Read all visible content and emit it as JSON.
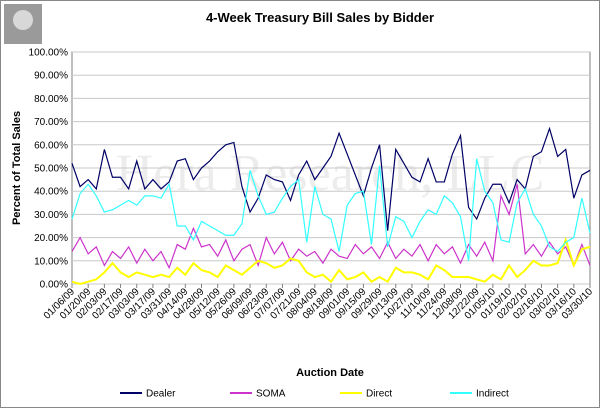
{
  "chart_data": {
    "type": "line",
    "title": "4-Week Treasury Bill Sales by Bidder",
    "watermark": "Hera Research, LLC",
    "x_label": "Auction Date",
    "y_label": "Percent of Total Sales",
    "categories": [
      "01/06/09",
      null,
      "01/20/09",
      null,
      "02/03/09",
      null,
      "02/17/09",
      null,
      "03/03/09",
      null,
      "03/17/09",
      null,
      "03/31/09",
      null,
      "04/14/09",
      null,
      "04/28/09",
      null,
      "05/12/09",
      null,
      "05/26/09",
      null,
      "06/09/09",
      null,
      "06/23/09",
      null,
      "07/07/09",
      null,
      "07/21/09",
      null,
      "08/04/09",
      null,
      "08/18/09",
      null,
      "09/01/09",
      null,
      "09/15/09",
      null,
      "09/29/09",
      null,
      "10/13/09",
      null,
      "10/27/09",
      null,
      "11/10/09",
      null,
      "11/24/09",
      null,
      "12/08/09",
      null,
      "12/22/09",
      null,
      "01/05/10",
      null,
      "01/19/10",
      null,
      "02/02/10",
      null,
      "02/16/10",
      null,
      "03/02/10",
      null,
      "03/16/10",
      null,
      "03/30/10"
    ],
    "series": [
      {
        "name": "Dealer",
        "color": "#000066",
        "values": [
          52,
          42,
          45,
          41,
          58,
          46,
          46,
          41,
          53,
          41,
          45,
          41,
          44,
          53,
          54,
          45,
          50,
          53,
          57,
          60,
          61,
          42,
          31,
          37,
          47,
          45,
          44,
          36,
          47,
          53,
          45,
          50,
          55,
          65,
          56,
          47,
          38,
          50,
          60,
          23,
          58,
          52,
          46,
          44,
          54,
          44,
          44,
          56,
          64,
          33,
          28,
          37,
          43,
          43,
          35,
          45,
          41,
          55,
          57,
          67,
          55,
          58,
          37,
          47,
          49
        ]
      },
      {
        "name": "SOMA",
        "color": "#cc33cc",
        "values": [
          14,
          20,
          13,
          16,
          8,
          14,
          11,
          16,
          9,
          15,
          10,
          14,
          7,
          17,
          15,
          24,
          16,
          17,
          12,
          19,
          10,
          15,
          17,
          8,
          20,
          13,
          18,
          10,
          15,
          12,
          14,
          9,
          15,
          12,
          11,
          17,
          13,
          16,
          11,
          18,
          11,
          15,
          12,
          17,
          10,
          17,
          13,
          16,
          9,
          17,
          12,
          18,
          10,
          38,
          30,
          43,
          13,
          17,
          12,
          18,
          13,
          16,
          8,
          17,
          8
        ]
      },
      {
        "name": "Direct",
        "color": "#ffff00",
        "values": [
          1,
          0,
          1,
          2,
          5,
          9,
          5,
          3,
          5,
          4,
          3,
          4,
          3,
          7,
          4,
          9,
          6,
          5,
          3,
          8,
          6,
          4,
          7,
          10,
          9,
          7,
          8,
          11,
          10,
          5,
          3,
          4,
          1,
          6,
          2,
          3,
          5,
          1,
          3,
          1,
          7,
          5,
          5,
          4,
          2,
          8,
          6,
          3,
          3,
          3,
          2,
          1,
          4,
          2,
          8,
          3,
          6,
          10,
          8,
          8,
          9,
          19,
          8,
          15,
          16
        ]
      },
      {
        "name": "Indirect",
        "color": "#33ffff",
        "values": [
          28,
          39,
          43,
          38,
          31,
          32,
          34,
          36,
          34,
          38,
          38,
          37,
          43,
          25,
          25,
          19,
          27,
          25,
          23,
          21,
          21,
          26,
          49,
          38,
          30,
          31,
          37,
          42,
          45,
          18,
          42,
          30,
          28,
          14,
          34,
          39,
          40,
          17,
          51,
          16,
          29,
          27,
          20,
          27,
          32,
          30,
          38,
          35,
          29,
          10,
          54,
          40,
          35,
          19,
          18,
          35,
          41,
          30,
          25,
          16,
          14,
          18,
          20,
          37,
          22
        ]
      }
    ],
    "ylim": [
      0,
      100
    ],
    "yticks": [
      {
        "value": 0,
        "label": "0.00%"
      },
      {
        "value": 10,
        "label": "10.00%"
      },
      {
        "value": 20,
        "label": "20.00%"
      },
      {
        "value": 30,
        "label": "30.00%"
      },
      {
        "value": 40,
        "label": "40.00%"
      },
      {
        "value": 50,
        "label": "50.00%"
      },
      {
        "value": 60,
        "label": "60.00%"
      },
      {
        "value": 70,
        "label": "70.00%"
      },
      {
        "value": 80,
        "label": "80.00%"
      },
      {
        "value": 90,
        "label": "90.00%"
      },
      {
        "value": 100,
        "label": "100.00%"
      }
    ],
    "grid": true,
    "legend": "bottom"
  }
}
